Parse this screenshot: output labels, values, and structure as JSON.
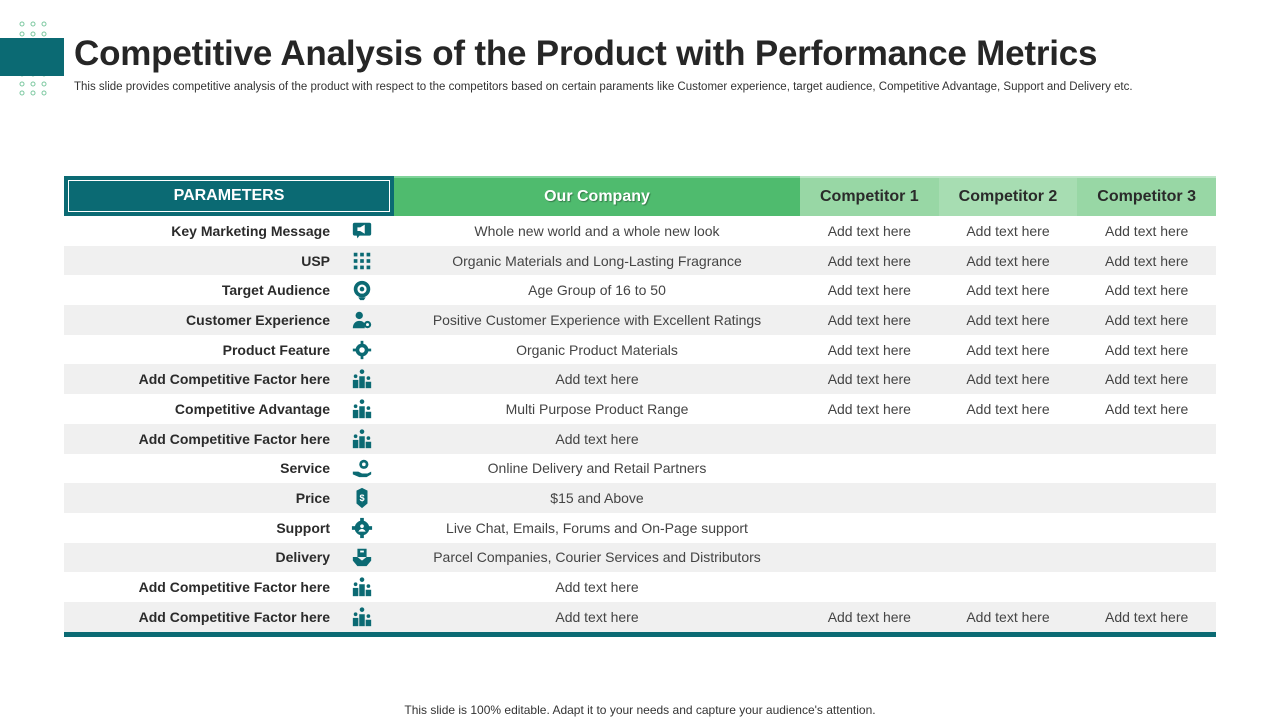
{
  "title": "Competitive Analysis of the Product with Performance Metrics",
  "subtitle": "This slide provides competitive analysis of the product with respect to the competitors based on certain paraments like Customer experience, target audience, Competitive Advantage, Support and Delivery etc.",
  "footer": "This slide is 100% editable. Adapt it to your needs and capture your audience's attention.",
  "colors": {
    "accent": "#0b6a73",
    "our_company": "#4fbb6e",
    "competitor": "#98d7a5"
  },
  "table": {
    "headers": {
      "parameters": "PARAMETERS",
      "our_company": "Our Company",
      "competitor1": "Competitor 1",
      "competitor2": "Competitor 2",
      "competitor3": "Competitor 3"
    },
    "rows": [
      {
        "param": "Key Marketing Message",
        "icon": "megaphone-icon",
        "our": "Whole new world and a whole new look",
        "c1": "Add text here",
        "c2": "Add text here",
        "c3": "Add text here"
      },
      {
        "param": "USP",
        "icon": "grid-icon",
        "our": "Organic Materials and Long-Lasting Fragrance",
        "c1": "Add text here",
        "c2": "Add text here",
        "c3": "Add text here"
      },
      {
        "param": "Target Audience",
        "icon": "target-icon",
        "our": "Age Group of 16 to 50",
        "c1": "Add text here",
        "c2": "Add text here",
        "c3": "Add text here"
      },
      {
        "param": "Customer Experience",
        "icon": "user-gear-icon",
        "our": "Positive Customer Experience with Excellent Ratings",
        "c1": "Add text here",
        "c2": "Add text here",
        "c3": "Add text here"
      },
      {
        "param": "Product Feature",
        "icon": "gear-icon",
        "our": "Organic Product Materials",
        "c1": "Add text here",
        "c2": "Add text here",
        "c3": "Add text here"
      },
      {
        "param": "Add Competitive Factor here",
        "icon": "podium-icon",
        "our": "Add text here",
        "c1": "Add text here",
        "c2": "Add text here",
        "c3": "Add text here"
      },
      {
        "param": "Competitive Advantage",
        "icon": "podium-icon",
        "our": "Multi Purpose Product Range",
        "c1": "Add text here",
        "c2": "Add text here",
        "c3": "Add text here"
      },
      {
        "param": "Add Competitive Factor here",
        "icon": "podium-icon",
        "our": "Add text here",
        "c1": "",
        "c2": "",
        "c3": ""
      },
      {
        "param": "Service",
        "icon": "service-hand-icon",
        "our": "Online Delivery and Retail Partners",
        "c1": "",
        "c2": "",
        "c3": ""
      },
      {
        "param": "Price",
        "icon": "price-tag-icon",
        "our": "$15 and Above",
        "c1": "",
        "c2": "",
        "c3": ""
      },
      {
        "param": "Support",
        "icon": "support-gear-icon",
        "our": "Live Chat, Emails, Forums and On-Page support",
        "c1": "",
        "c2": "",
        "c3": ""
      },
      {
        "param": "Delivery",
        "icon": "delivery-box-icon",
        "our": "Parcel Companies, Courier Services and Distributors",
        "c1": "",
        "c2": "",
        "c3": ""
      },
      {
        "param": "Add Competitive Factor here",
        "icon": "podium-icon",
        "our": "Add text here",
        "c1": "",
        "c2": "",
        "c3": ""
      },
      {
        "param": "Add Competitive Factor here",
        "icon": "podium-icon",
        "our": "Add text here",
        "c1": "Add text here",
        "c2": "Add text here",
        "c3": "Add text here"
      }
    ]
  }
}
